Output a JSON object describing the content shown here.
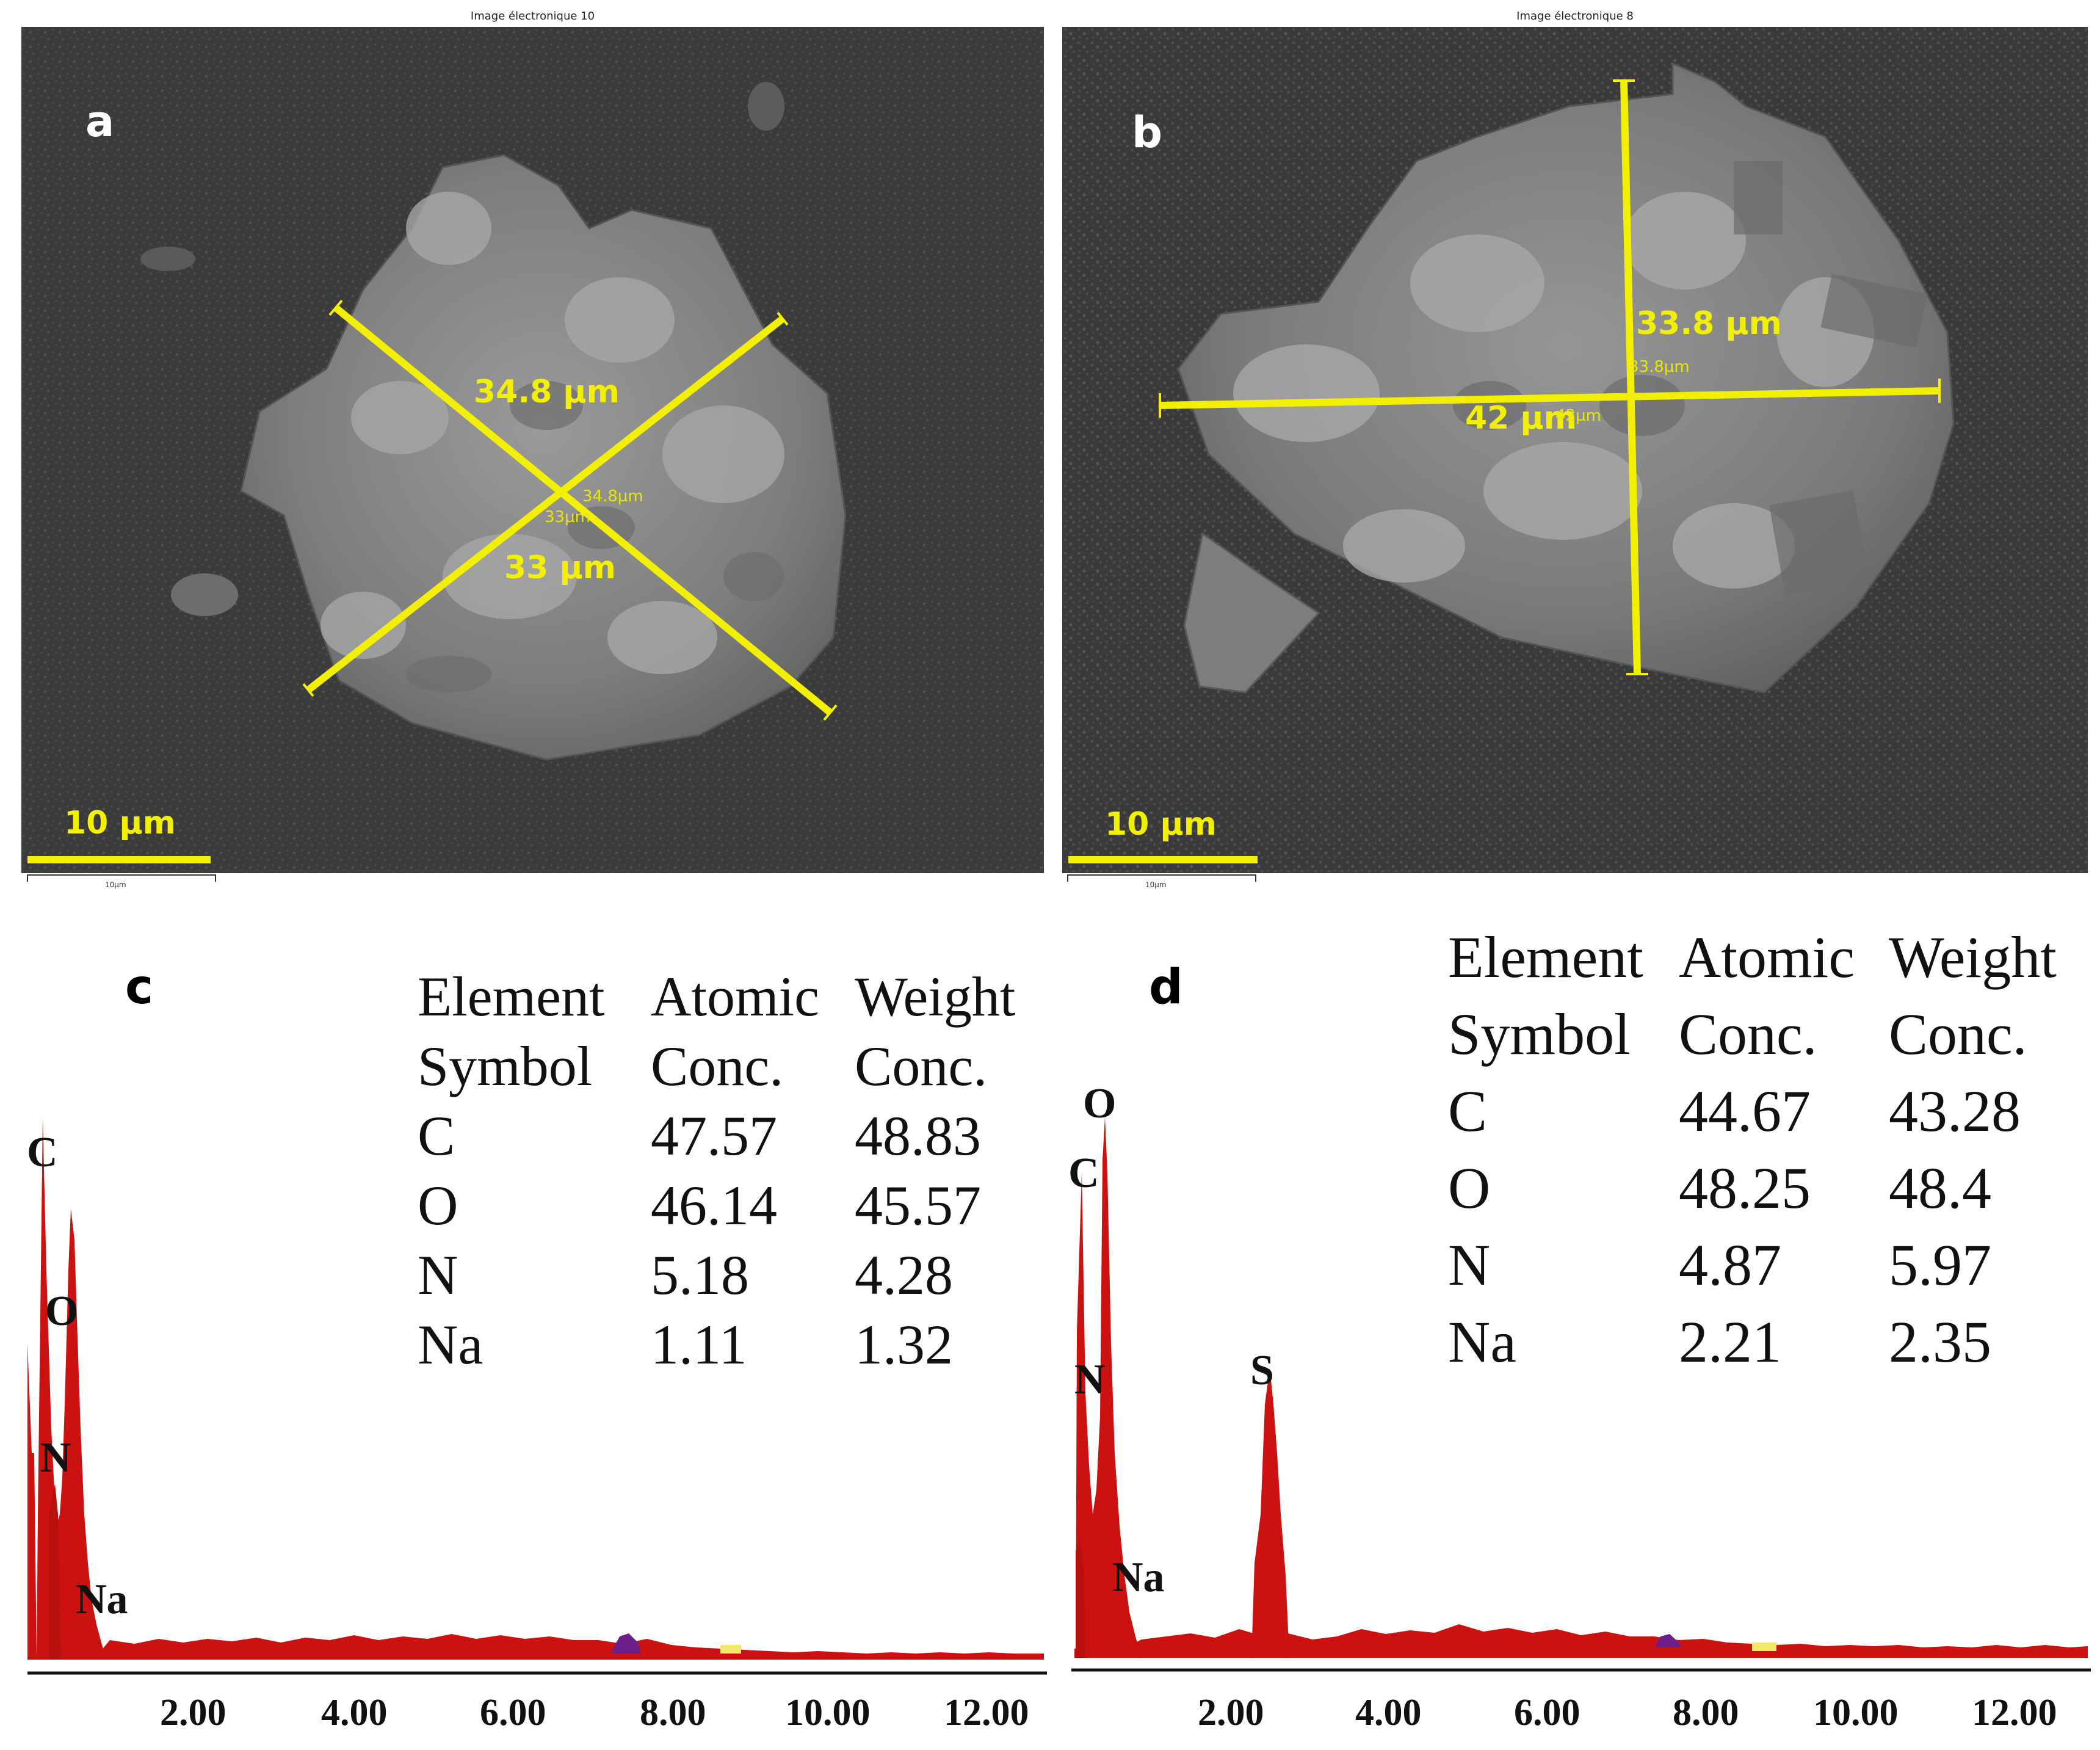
{
  "panels": {
    "a": {
      "letter": "a",
      "sem_title": "Image électronique 10",
      "measure_long": "34.8 µm",
      "measure_short": "33 µm",
      "measure_long_small": "34.8µm",
      "measure_short_small": "33µm",
      "scale_label": "10 µm",
      "scale_tiny": "10µm"
    },
    "b": {
      "letter": "b",
      "sem_title": "Image électronique 8",
      "measure_vertical": "33.8 µm",
      "measure_horizontal": "42 µm",
      "measure_vertical_small": "33.8µm",
      "measure_horizontal_small": "42µm",
      "scale_label": "10 µm",
      "scale_tiny": "10µm"
    },
    "c": {
      "letter": "c",
      "table": {
        "headers": [
          [
            "Element",
            "Symbol"
          ],
          [
            "Atomic",
            "Conc."
          ],
          [
            "Weight",
            "Conc."
          ]
        ],
        "rows": [
          [
            "C",
            "47.57",
            "48.83"
          ],
          [
            "O",
            "46.14",
            "45.57"
          ],
          [
            "N",
            "5.18",
            "4.28"
          ],
          [
            "Na",
            "1.11",
            "1.32"
          ]
        ]
      },
      "peak_labels": [
        "C",
        "O",
        "N",
        "Na"
      ],
      "x_ticks": [
        "2.00",
        "4.00",
        "6.00",
        "8.00",
        "10.00",
        "12.00"
      ]
    },
    "d": {
      "letter": "d",
      "table": {
        "headers": [
          [
            "Element",
            "Symbol"
          ],
          [
            "Atomic",
            "Conc."
          ],
          [
            "Weight",
            "Conc."
          ]
        ],
        "rows": [
          [
            "C",
            "44.67",
            "43.28"
          ],
          [
            "O",
            "48.25",
            "48.4"
          ],
          [
            "N",
            "4.87",
            "5.97"
          ],
          [
            "Na",
            "2.21",
            "2.35"
          ]
        ]
      },
      "peak_labels": [
        "O",
        "C",
        "N",
        "S",
        "Na"
      ],
      "x_ticks": [
        "2.00",
        "4.00",
        "6.00",
        "8.00",
        "10.00",
        "12.00"
      ]
    }
  },
  "colors": {
    "measure_yellow": "#f2f000",
    "spectrum_red": "#cc1111",
    "sem_background": "#3a3a3a",
    "particle": "#8a8a8a"
  }
}
